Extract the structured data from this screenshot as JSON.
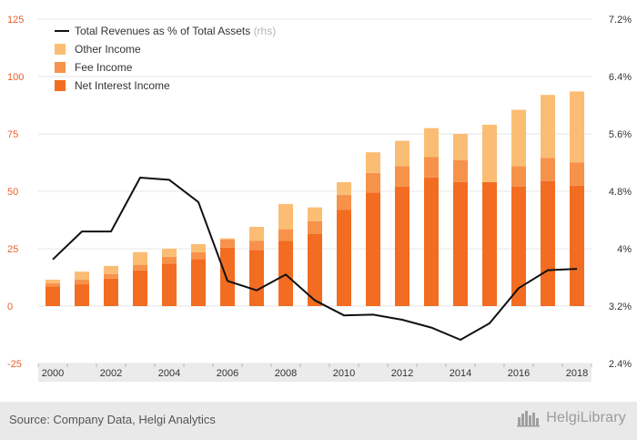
{
  "chart_data": {
    "type": "bar",
    "stacked": true,
    "categories": [
      "2000",
      "2001",
      "2002",
      "2003",
      "2004",
      "2005",
      "2006",
      "2007",
      "2008",
      "2009",
      "2010",
      "2011",
      "2012",
      "2013",
      "2014",
      "2015",
      "2016",
      "2017",
      "2018"
    ],
    "x_tick_labels": [
      "2000",
      "2002",
      "2004",
      "2006",
      "2008",
      "2010",
      "2012",
      "2014",
      "2016",
      "2018"
    ],
    "series": [
      {
        "name": "Net Interest Income",
        "type": "bar",
        "axis": "left",
        "color": "#f26d21",
        "values": [
          8.5,
          9.5,
          12,
          15.5,
          18.5,
          20.5,
          25.5,
          24.5,
          28.5,
          31.5,
          42,
          49.5,
          52,
          56,
          54,
          54,
          52,
          54.5,
          52.5
        ]
      },
      {
        "name": "Fee Income",
        "type": "bar",
        "axis": "left",
        "color": "#f7924b",
        "values": [
          1.5,
          2,
          2,
          2.5,
          3,
          3,
          3.5,
          4,
          5,
          5.5,
          6.5,
          8.5,
          9,
          9,
          9.5,
          0,
          9,
          10,
          10
        ]
      },
      {
        "name": "Other Income",
        "type": "bar",
        "axis": "left",
        "color": "#fbbd73",
        "values": [
          1.5,
          3.5,
          3.5,
          5.5,
          3.5,
          3.5,
          0.5,
          6,
          11,
          6,
          5.5,
          9,
          11,
          12.5,
          11.5,
          25,
          24.5,
          27.5,
          31
        ]
      },
      {
        "name": "Total Revenues as % of Total Assets",
        "legend_suffix": "(rhs)",
        "type": "line",
        "axis": "right",
        "color": "#111111",
        "values": [
          3.85,
          4.24,
          4.24,
          4.99,
          4.96,
          4.65,
          3.55,
          3.42,
          3.64,
          3.28,
          3.07,
          3.08,
          3.01,
          2.9,
          2.73,
          2.96,
          3.45,
          3.7,
          3.72
        ]
      }
    ],
    "left_axis": {
      "ylim": [
        -25,
        125
      ],
      "ticks": [
        -25,
        0,
        25,
        50,
        75,
        100,
        125
      ],
      "tick_color": "#e8602c"
    },
    "right_axis": {
      "ylim": [
        2.4,
        7.2
      ],
      "ticks": [
        "2.4%",
        "3.2%",
        "4%",
        "4.8%",
        "5.6%",
        "6.4%",
        "7.2%"
      ],
      "tick_values": [
        2.4,
        3.2,
        4.0,
        4.8,
        5.6,
        6.4,
        7.2
      ]
    },
    "grid": true,
    "legend_position": "top-left"
  },
  "footer": {
    "source": "Source: Company Data, Helgi Analytics",
    "brand": "HelgiLibrary",
    "brand_icon": "city-skyline-icon"
  }
}
